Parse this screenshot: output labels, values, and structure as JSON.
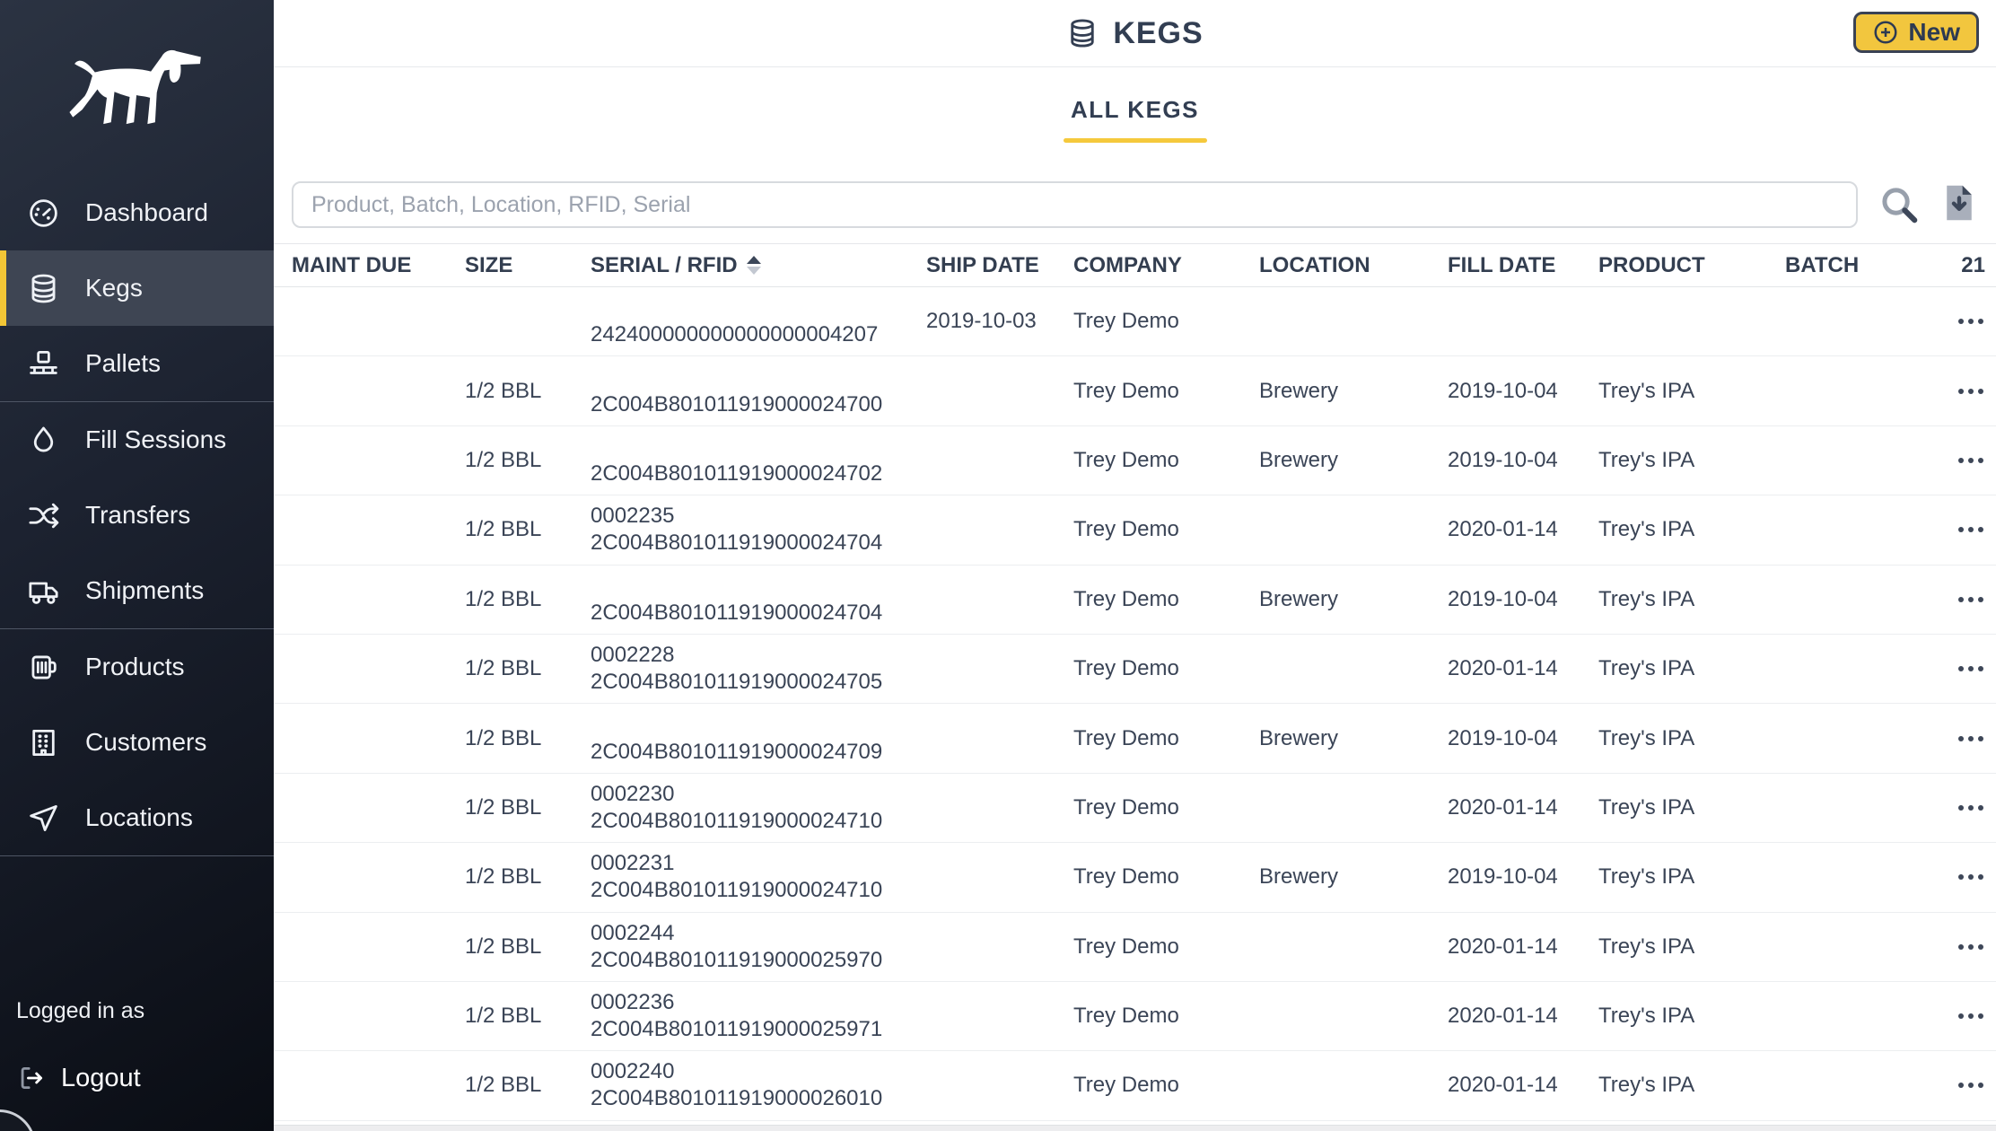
{
  "sidebar": {
    "logo": "dog-logo",
    "items": [
      {
        "label": "Dashboard",
        "icon": "gauge-icon",
        "active": false
      },
      {
        "label": "Kegs",
        "icon": "keg-icon",
        "active": true
      },
      {
        "label": "Pallets",
        "icon": "pallet-icon",
        "active": false
      },
      {
        "label": "Fill Sessions",
        "icon": "droplet-icon",
        "active": false
      },
      {
        "label": "Transfers",
        "icon": "shuffle-icon",
        "active": false
      },
      {
        "label": "Shipments",
        "icon": "truck-icon",
        "active": false
      },
      {
        "label": "Products",
        "icon": "mug-icon",
        "active": false
      },
      {
        "label": "Customers",
        "icon": "building-icon",
        "active": false
      },
      {
        "label": "Locations",
        "icon": "send-icon",
        "active": false
      }
    ],
    "footer": {
      "logged_in_label": "Logged in as",
      "logout_label": "Logout",
      "logout_icon": "logout-icon"
    }
  },
  "header": {
    "title": "KEGS",
    "title_icon": "keg-icon",
    "new_button": {
      "label": "New",
      "icon": "plus-circle-icon"
    }
  },
  "tabs": [
    {
      "label": "ALL KEGS",
      "active": true
    }
  ],
  "toolbar": {
    "search_placeholder": "Product, Batch, Location, RFID, Serial",
    "search_icon": "search-icon",
    "export_icon": "file-download-icon"
  },
  "table": {
    "columns": [
      "MAINT DUE",
      "SIZE",
      "SERIAL / RFID",
      "SHIP DATE",
      "COMPANY",
      "LOCATION",
      "FILL DATE",
      "PRODUCT",
      "BATCH"
    ],
    "sorted_column": "SERIAL / RFID",
    "sort_direction": "asc",
    "row_count": "21",
    "row_menu_icon": "ellipsis-icon",
    "rows": [
      {
        "maint_due": "",
        "size": "",
        "serial": "",
        "rfid": "242400000000000000004207",
        "ship_date": "2019-10-03",
        "company": "Trey Demo",
        "location": "",
        "fill_date": "",
        "product": "",
        "batch": ""
      },
      {
        "maint_due": "",
        "size": "1/2 BBL",
        "serial": "",
        "rfid": "2C004B801011919000024700",
        "ship_date": "",
        "company": "Trey Demo",
        "location": "Brewery",
        "fill_date": "2019-10-04",
        "product": "Trey's IPA",
        "batch": ""
      },
      {
        "maint_due": "",
        "size": "1/2 BBL",
        "serial": "",
        "rfid": "2C004B801011919000024702",
        "ship_date": "",
        "company": "Trey Demo",
        "location": "Brewery",
        "fill_date": "2019-10-04",
        "product": "Trey's IPA",
        "batch": ""
      },
      {
        "maint_due": "",
        "size": "1/2 BBL",
        "serial": "0002235",
        "rfid": "2C004B801011919000024704",
        "ship_date": "",
        "company": "Trey Demo",
        "location": "",
        "fill_date": "2020-01-14",
        "product": "Trey's IPA",
        "batch": ""
      },
      {
        "maint_due": "",
        "size": "1/2 BBL",
        "serial": "",
        "rfid": "2C004B801011919000024704",
        "ship_date": "",
        "company": "Trey Demo",
        "location": "Brewery",
        "fill_date": "2019-10-04",
        "product": "Trey's IPA",
        "batch": ""
      },
      {
        "maint_due": "",
        "size": "1/2 BBL",
        "serial": "0002228",
        "rfid": "2C004B801011919000024705",
        "ship_date": "",
        "company": "Trey Demo",
        "location": "",
        "fill_date": "2020-01-14",
        "product": "Trey's IPA",
        "batch": ""
      },
      {
        "maint_due": "",
        "size": "1/2 BBL",
        "serial": "",
        "rfid": "2C004B801011919000024709",
        "ship_date": "",
        "company": "Trey Demo",
        "location": "Brewery",
        "fill_date": "2019-10-04",
        "product": "Trey's IPA",
        "batch": ""
      },
      {
        "maint_due": "",
        "size": "1/2 BBL",
        "serial": "0002230",
        "rfid": "2C004B801011919000024710",
        "ship_date": "",
        "company": "Trey Demo",
        "location": "",
        "fill_date": "2020-01-14",
        "product": "Trey's IPA",
        "batch": ""
      },
      {
        "maint_due": "",
        "size": "1/2 BBL",
        "serial": "0002231",
        "rfid": "2C004B801011919000024710",
        "ship_date": "",
        "company": "Trey Demo",
        "location": "Brewery",
        "fill_date": "2019-10-04",
        "product": "Trey's IPA",
        "batch": ""
      },
      {
        "maint_due": "",
        "size": "1/2 BBL",
        "serial": "0002244",
        "rfid": "2C004B801011919000025970",
        "ship_date": "",
        "company": "Trey Demo",
        "location": "",
        "fill_date": "2020-01-14",
        "product": "Trey's IPA",
        "batch": ""
      },
      {
        "maint_due": "",
        "size": "1/2 BBL",
        "serial": "0002236",
        "rfid": "2C004B801011919000025971",
        "ship_date": "",
        "company": "Trey Demo",
        "location": "",
        "fill_date": "2020-01-14",
        "product": "Trey's IPA",
        "batch": ""
      },
      {
        "maint_due": "",
        "size": "1/2 BBL",
        "serial": "0002240",
        "rfid": "2C004B801011919000026010",
        "ship_date": "",
        "company": "Trey Demo",
        "location": "",
        "fill_date": "2020-01-14",
        "product": "Trey's IPA",
        "batch": ""
      }
    ]
  },
  "colors": {
    "accent_yellow": "#f3c636",
    "sidebar_dark": "#1c2230",
    "sidebar_active": "#3e4553",
    "text_dark_navy": "#333e52",
    "divider_light": "#eceef0"
  }
}
